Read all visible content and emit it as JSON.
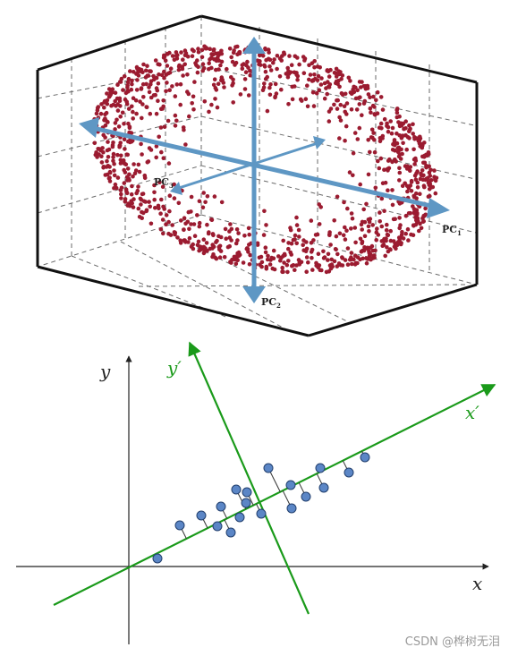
{
  "pca3d": {
    "pc1": {
      "base": "PC",
      "sub": "1"
    },
    "pc2": {
      "base": "PC",
      "sub": "2"
    },
    "pc3": {
      "base": "PC",
      "sub": "3"
    },
    "colors": {
      "point": "#9b1b30",
      "arrow": "#5e97c4",
      "box": "#111111",
      "grid": "#6a6a6a"
    }
  },
  "projection_2d": {
    "x_label": "x",
    "y_label": "y",
    "x_prime_label": "x′",
    "y_prime_label": "y′",
    "colors": {
      "axes": "#222222",
      "rotated_axes": "#1a9a1a",
      "point": "#5b86c6",
      "point_stroke": "#23406e",
      "projection": "#333333"
    }
  },
  "watermark": "CSDN @桦树无泪"
}
